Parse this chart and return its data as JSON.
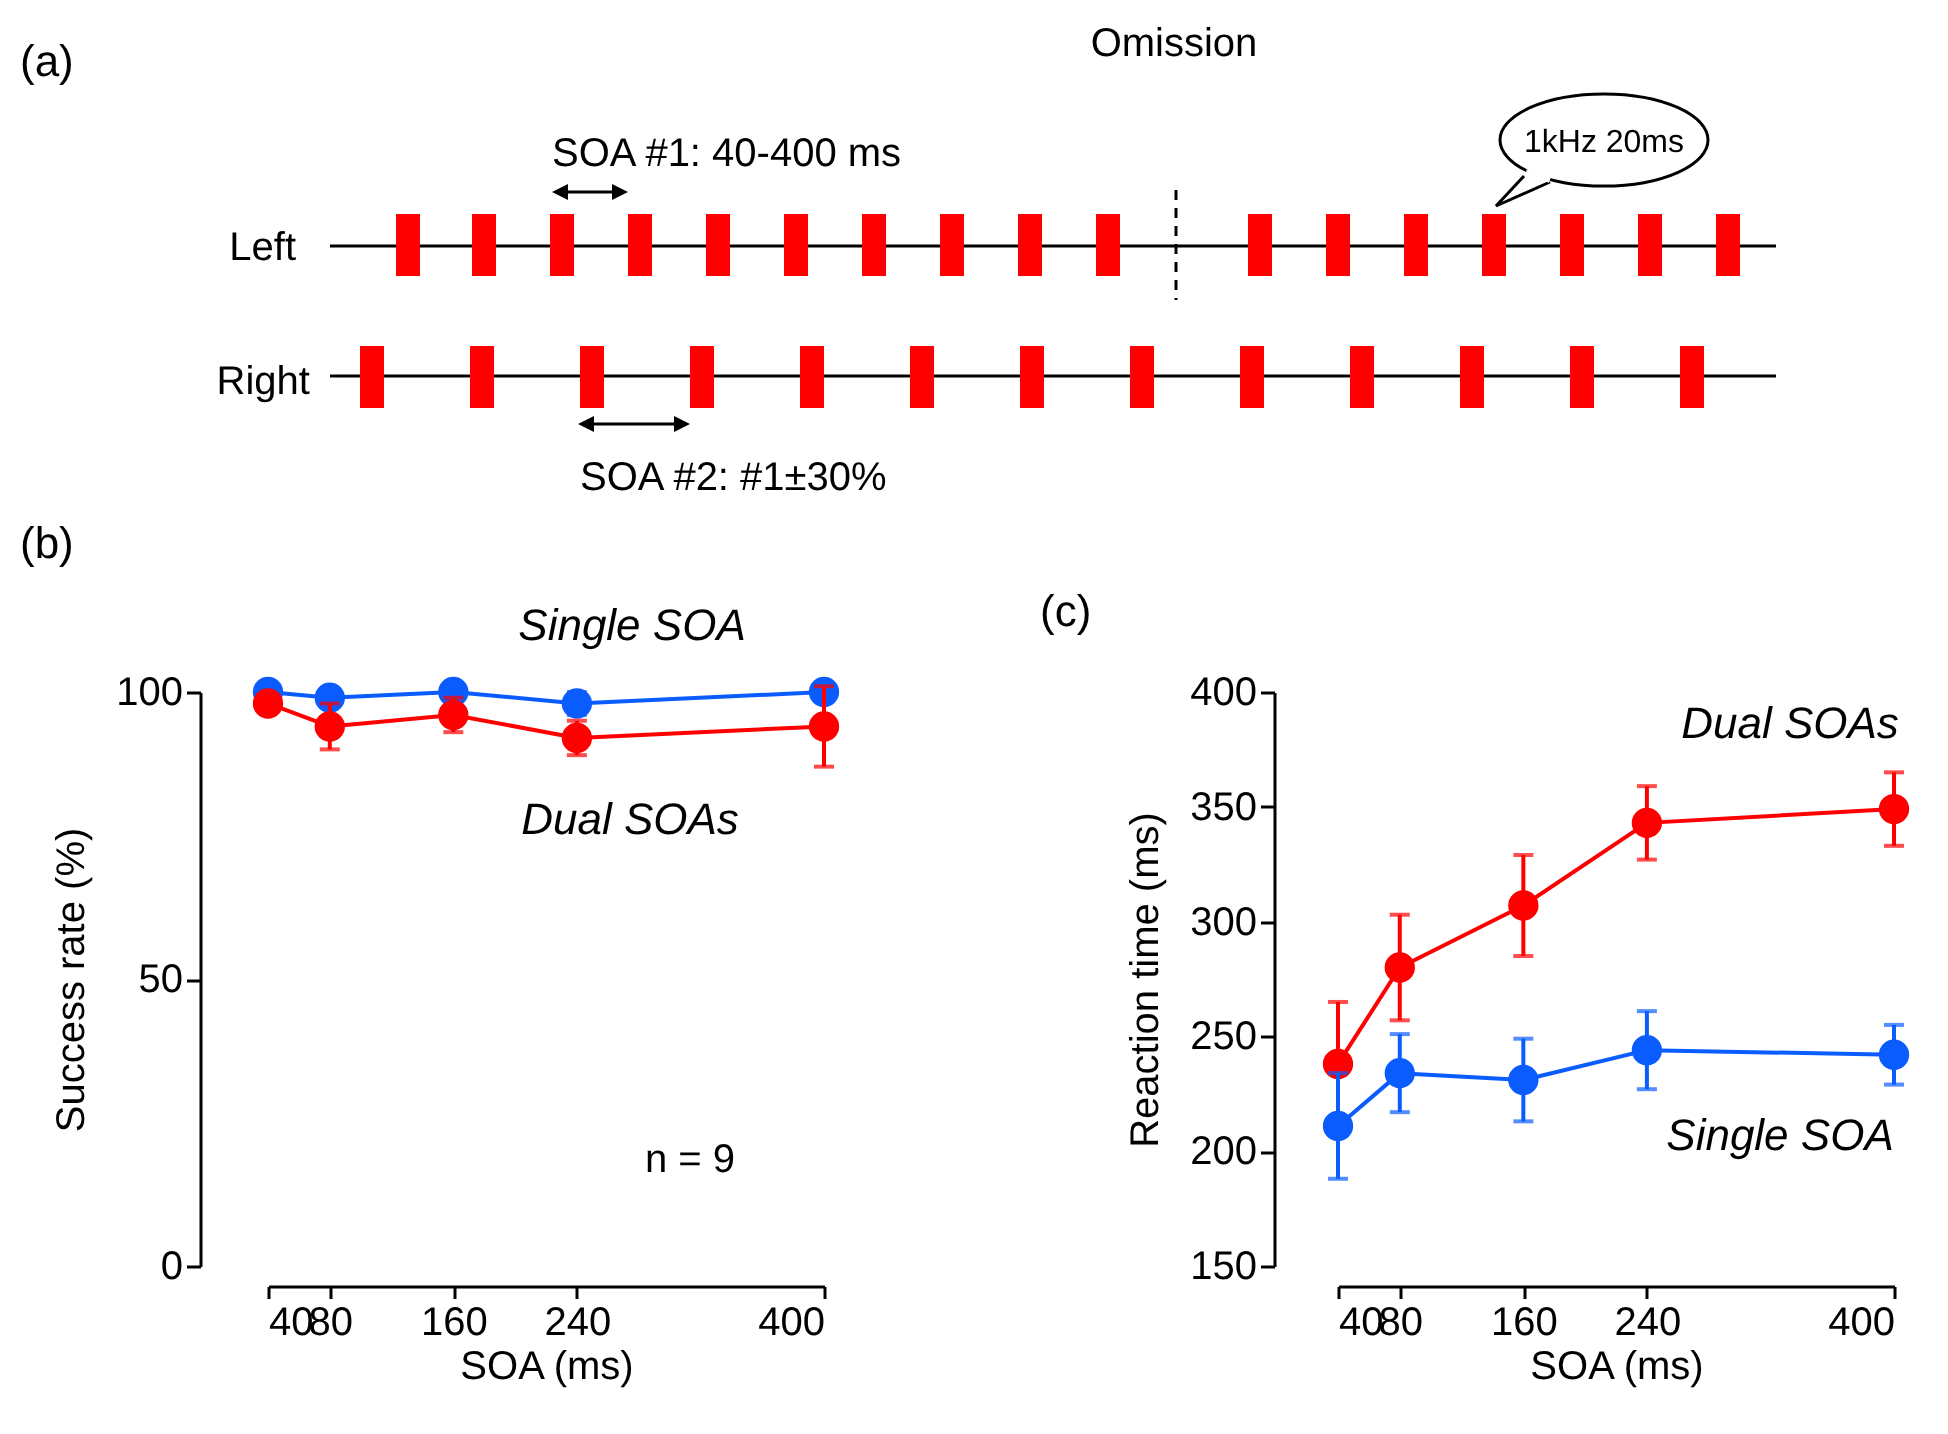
{
  "chart_data": [
    {
      "type": "other",
      "title": "(a)",
      "annotations": [
        "Omission",
        "SOA #1: 40-400 ms",
        "Left",
        "Right",
        "SOA #2: #1±30%",
        "1kHz 20ms"
      ]
    },
    {
      "type": "line",
      "title": "(b)",
      "xlabel": "SOA (ms)",
      "ylabel": "Success rate (%)",
      "x": [
        40,
        80,
        160,
        240,
        400
      ],
      "xlim": [
        40,
        400
      ],
      "xticks": [
        40,
        80,
        160,
        240,
        400
      ],
      "ylim": [
        0,
        100
      ],
      "yticks": [
        0,
        50,
        100
      ],
      "marker": "circle",
      "line_style": "solid",
      "annotations": [
        "n = 9"
      ],
      "series": [
        {
          "name": "Single SOA",
          "color": "#0a5cff",
          "values": [
            100,
            99,
            100,
            98,
            100
          ],
          "errors": [
            null,
            null,
            null,
            2,
            null
          ]
        },
        {
          "name": "Dual SOAs",
          "color": "#ff0000",
          "values": [
            98,
            94,
            96,
            92,
            94
          ],
          "errors": [
            1,
            4,
            3,
            3,
            7
          ]
        }
      ]
    },
    {
      "type": "line",
      "title": "(c)",
      "xlabel": "SOA (ms)",
      "ylabel": "Reaction time (ms)",
      "x": [
        40,
        80,
        160,
        240,
        400
      ],
      "xlim": [
        40,
        400
      ],
      "xticks": [
        40,
        80,
        160,
        240,
        400
      ],
      "ylim": [
        150,
        400
      ],
      "yticks": [
        150,
        200,
        250,
        300,
        350,
        400
      ],
      "marker": "circle",
      "line_style": "solid",
      "series": [
        {
          "name": "Dual SOAs",
          "color": "#ff0000",
          "values": [
            238,
            280,
            307,
            343,
            349
          ],
          "errors": [
            27,
            23,
            22,
            16,
            16
          ]
        },
        {
          "name": "Single SOA",
          "color": "#0a5cff",
          "values": [
            211,
            234,
            231,
            244,
            242
          ],
          "errors": [
            23,
            17,
            18,
            17,
            13
          ]
        }
      ]
    }
  ]
}
